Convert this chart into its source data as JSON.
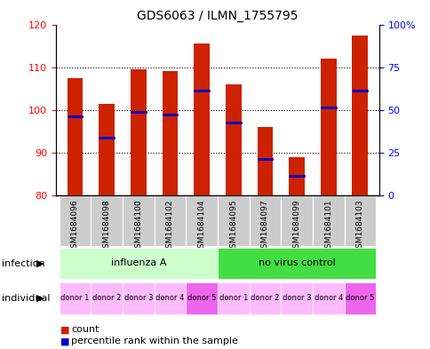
{
  "title": "GDS6063 / ILMN_1755795",
  "samples": [
    "GSM1684096",
    "GSM1684098",
    "GSM1684100",
    "GSM1684102",
    "GSM1684104",
    "GSM1684095",
    "GSM1684097",
    "GSM1684099",
    "GSM1684101",
    "GSM1684103"
  ],
  "bar_bottoms": [
    80,
    80,
    80,
    80,
    80,
    80,
    80,
    80,
    80,
    80
  ],
  "bar_tops": [
    107.5,
    101.5,
    109.5,
    109.0,
    115.5,
    106.0,
    96.0,
    89.0,
    112.0,
    117.5
  ],
  "percentile_vals": [
    98.5,
    93.5,
    99.5,
    99.0,
    104.5,
    97.0,
    88.5,
    84.5,
    100.5,
    104.5
  ],
  "ylim": [
    80,
    120
  ],
  "yticks": [
    80,
    90,
    100,
    110,
    120
  ],
  "right_yticks": [
    0,
    25,
    50,
    75,
    100
  ],
  "right_ytick_labels": [
    "0",
    "25",
    "50",
    "75",
    "100%"
  ],
  "bar_color": "#cc2200",
  "percentile_color": "#0000cc",
  "infection_groups": [
    {
      "label": "influenza A",
      "start": 0,
      "end": 5,
      "color": "#ccffcc"
    },
    {
      "label": "no virus control",
      "start": 5,
      "end": 10,
      "color": "#44dd44"
    }
  ],
  "individual_labels": [
    "donor 1",
    "donor 2",
    "donor 3",
    "donor 4",
    "donor 5",
    "donor 1",
    "donor 2",
    "donor 3",
    "donor 4",
    "donor 5"
  ],
  "individual_colors": [
    "#ffbbff",
    "#ffbbff",
    "#ffbbff",
    "#ffbbff",
    "#ee66ee",
    "#ffbbff",
    "#ffbbff",
    "#ffbbff",
    "#ffbbff",
    "#ee66ee"
  ],
  "infection_label": "infection",
  "individual_label": "individual",
  "legend_count_label": "count",
  "legend_percentile_label": "percentile rank within the sample",
  "bar_width": 0.5,
  "sample_bg_color": "#cccccc"
}
